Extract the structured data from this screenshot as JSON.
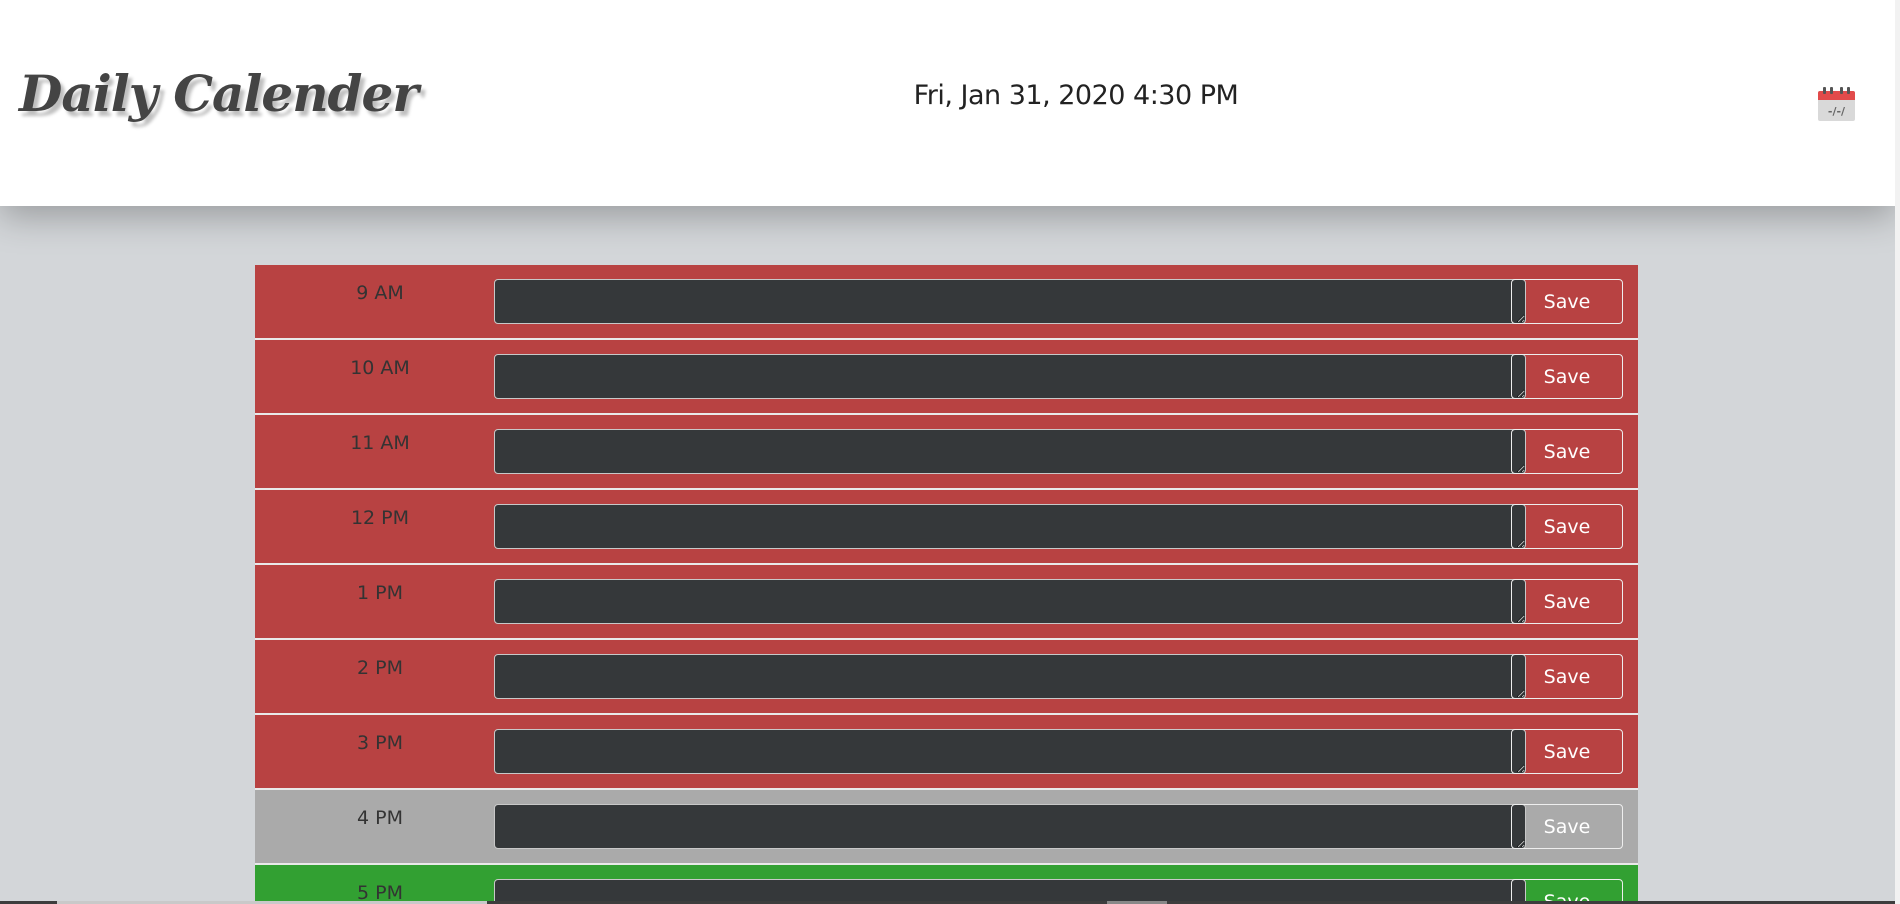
{
  "header": {
    "title": "Daily Calender",
    "current_datetime": "Fri, Jan 31, 2020 4:30 PM",
    "calendar_icon": "calendar-icon",
    "calendar_icon_text": "-/-/"
  },
  "planner": {
    "save_label": "Save",
    "rows": [
      {
        "hour": "9 AM",
        "status": "past",
        "task": ""
      },
      {
        "hour": "10 AM",
        "status": "past",
        "task": ""
      },
      {
        "hour": "11 AM",
        "status": "past",
        "task": ""
      },
      {
        "hour": "12 PM",
        "status": "past",
        "task": ""
      },
      {
        "hour": "1 PM",
        "status": "past",
        "task": ""
      },
      {
        "hour": "2 PM",
        "status": "past",
        "task": ""
      },
      {
        "hour": "3 PM",
        "status": "past",
        "task": ""
      },
      {
        "hour": "4 PM",
        "status": "present",
        "task": ""
      },
      {
        "hour": "5 PM",
        "status": "future",
        "task": ""
      }
    ]
  },
  "colors": {
    "past": "#b84242",
    "present": "#aaaaaa",
    "future": "#32a032",
    "textarea": "#35383a",
    "page_background": "#d3d6d9"
  }
}
